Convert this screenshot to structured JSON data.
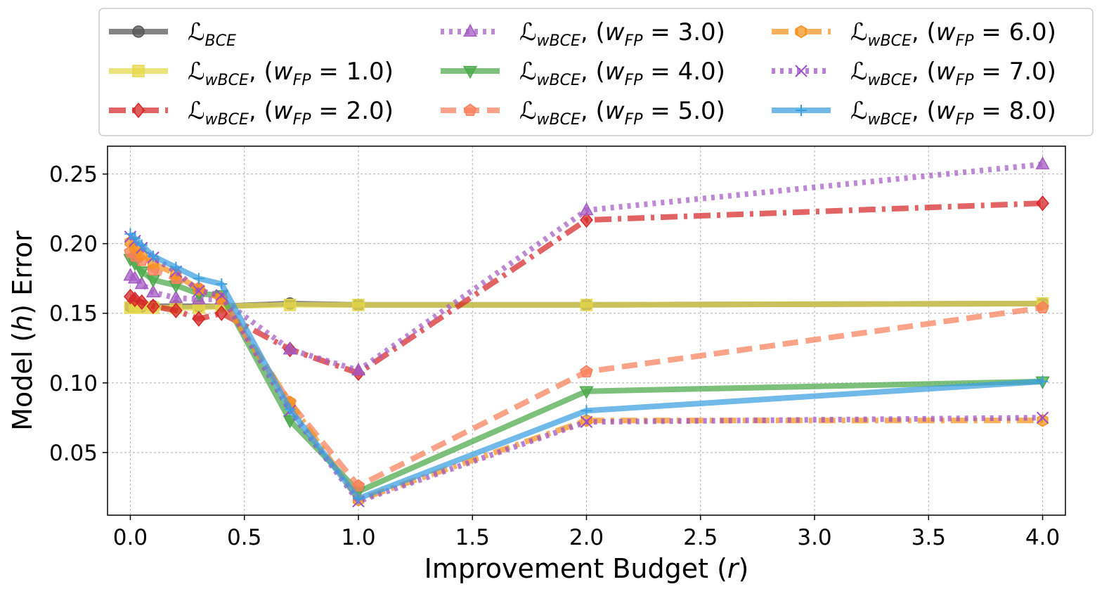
{
  "chart_data": {
    "type": "line",
    "title": "",
    "xlabel": "Improvement Budget (r)",
    "xlabel_parts": {
      "prefix": "Improvement Budget (",
      "var": "r",
      "suffix": ")"
    },
    "ylabel": "Model (h) Error",
    "ylabel_parts": {
      "prefix": "Model (",
      "var": "h",
      "suffix": ") Error"
    },
    "xlim": [
      -0.1,
      4.1
    ],
    "ylim": [
      0.005,
      0.27
    ],
    "xticks": [
      0.0,
      0.5,
      1.0,
      1.5,
      2.0,
      2.5,
      3.0,
      3.5,
      4.0
    ],
    "xtick_labels": [
      "0.0",
      "0.5",
      "1.0",
      "1.5",
      "2.0",
      "2.5",
      "3.0",
      "3.5",
      "4.0"
    ],
    "yticks": [
      0.05,
      0.1,
      0.15,
      0.2,
      0.25
    ],
    "ytick_labels": [
      "0.05",
      "0.10",
      "0.15",
      "0.20",
      "0.25"
    ],
    "grid": true,
    "legend_position": "top, outside, 3 columns",
    "x": [
      0.0,
      0.02,
      0.05,
      0.1,
      0.2,
      0.3,
      0.4,
      0.7,
      1.0,
      2.0,
      4.0
    ],
    "series": [
      {
        "name": "L_BCE",
        "label_main": "ℒ",
        "label_sub": "BCE",
        "label_rest": "",
        "color": "#555555",
        "marker": "circle",
        "dash": "solid",
        "values": [
          0.155,
          0.155,
          0.155,
          0.155,
          0.155,
          0.155,
          0.155,
          0.157,
          0.156,
          0.156,
          0.157
        ]
      },
      {
        "name": "L_wBCE (w_FP = 1.0)",
        "label_main": "ℒ",
        "label_sub": "wBCE",
        "label_rest": ", (w",
        "label_sub2": "FP",
        "label_end": " = 1.0)",
        "color": "#e6d84a",
        "marker": "square",
        "dash": "solid",
        "values": [
          0.154,
          0.154,
          0.154,
          0.154,
          0.154,
          0.154,
          0.155,
          0.156,
          0.156,
          0.156,
          0.157
        ]
      },
      {
        "name": "L_wBCE (w_FP = 2.0)",
        "label_main": "ℒ",
        "label_sub": "wBCE",
        "label_rest": ", (w",
        "label_sub2": "FP",
        "label_end": " = 2.0)",
        "color": "#d62728",
        "marker": "diamond",
        "dash": "dashdot",
        "values": [
          0.162,
          0.16,
          0.158,
          0.155,
          0.152,
          0.146,
          0.15,
          0.124,
          0.107,
          0.217,
          0.229
        ]
      },
      {
        "name": "L_wBCE (w_FP = 3.0)",
        "label_main": "ℒ",
        "label_sub": "wBCE",
        "label_rest": ", (w",
        "label_sub2": "FP",
        "label_end": " = 3.0)",
        "color": "#a45cc4",
        "marker": "triangle-up",
        "dash": "dotted",
        "values": [
          0.177,
          0.175,
          0.171,
          0.165,
          0.161,
          0.16,
          0.16,
          0.124,
          0.109,
          0.224,
          0.257
        ]
      },
      {
        "name": "L_wBCE (w_FP = 4.0)",
        "label_main": "ℒ",
        "label_sub": "wBCE",
        "label_rest": ", (w",
        "label_sub2": "FP",
        "label_end": " = 4.0)",
        "color": "#4aa84a",
        "marker": "triangle-down",
        "dash": "solid",
        "values": [
          0.189,
          0.186,
          0.18,
          0.174,
          0.17,
          0.164,
          0.163,
          0.073,
          0.022,
          0.094,
          0.101
        ]
      },
      {
        "name": "L_wBCE (w_FP = 5.0)",
        "label_main": "ℒ",
        "label_sub": "wBCE",
        "label_rest": ", (w",
        "label_sub2": "FP",
        "label_end": " = 5.0)",
        "color": "#fa7f5a",
        "marker": "pentagon",
        "dash": "dashed",
        "values": [
          0.194,
          0.191,
          0.188,
          0.181,
          0.175,
          0.168,
          0.16,
          0.086,
          0.026,
          0.108,
          0.154
        ]
      },
      {
        "name": "L_wBCE (w_FP = 6.0)",
        "label_main": "ℒ",
        "label_sub": "wBCE",
        "label_rest": ", (w",
        "label_sub2": "FP",
        "label_end": " = 6.0)",
        "color": "#f5921f",
        "marker": "hexagon",
        "dash": "dashdot",
        "values": [
          0.201,
          0.197,
          0.192,
          0.186,
          0.178,
          0.167,
          0.161,
          0.086,
          0.016,
          0.073,
          0.073
        ]
      },
      {
        "name": "L_wBCE (w_FP = 7.0)",
        "label_main": "ℒ",
        "label_sub": "wBCE",
        "label_rest": ", (w",
        "label_sub2": "FP",
        "label_end": " = 7.0)",
        "color": "#9d4dc4",
        "marker": "x",
        "dash": "dotted",
        "values": [
          0.205,
          0.202,
          0.197,
          0.19,
          0.18,
          0.166,
          0.163,
          0.08,
          0.015,
          0.072,
          0.075
        ]
      },
      {
        "name": "L_wBCE (w_FP = 8.0)",
        "label_main": "ℒ",
        "label_sub": "wBCE",
        "label_rest": ", (w",
        "label_sub2": "FP",
        "label_end": " = 8.0)",
        "color": "#3a9ee0",
        "marker": "plus",
        "dash": "solid",
        "values": [
          0.207,
          0.204,
          0.199,
          0.191,
          0.183,
          0.175,
          0.171,
          0.081,
          0.017,
          0.08,
          0.101
        ]
      }
    ]
  }
}
